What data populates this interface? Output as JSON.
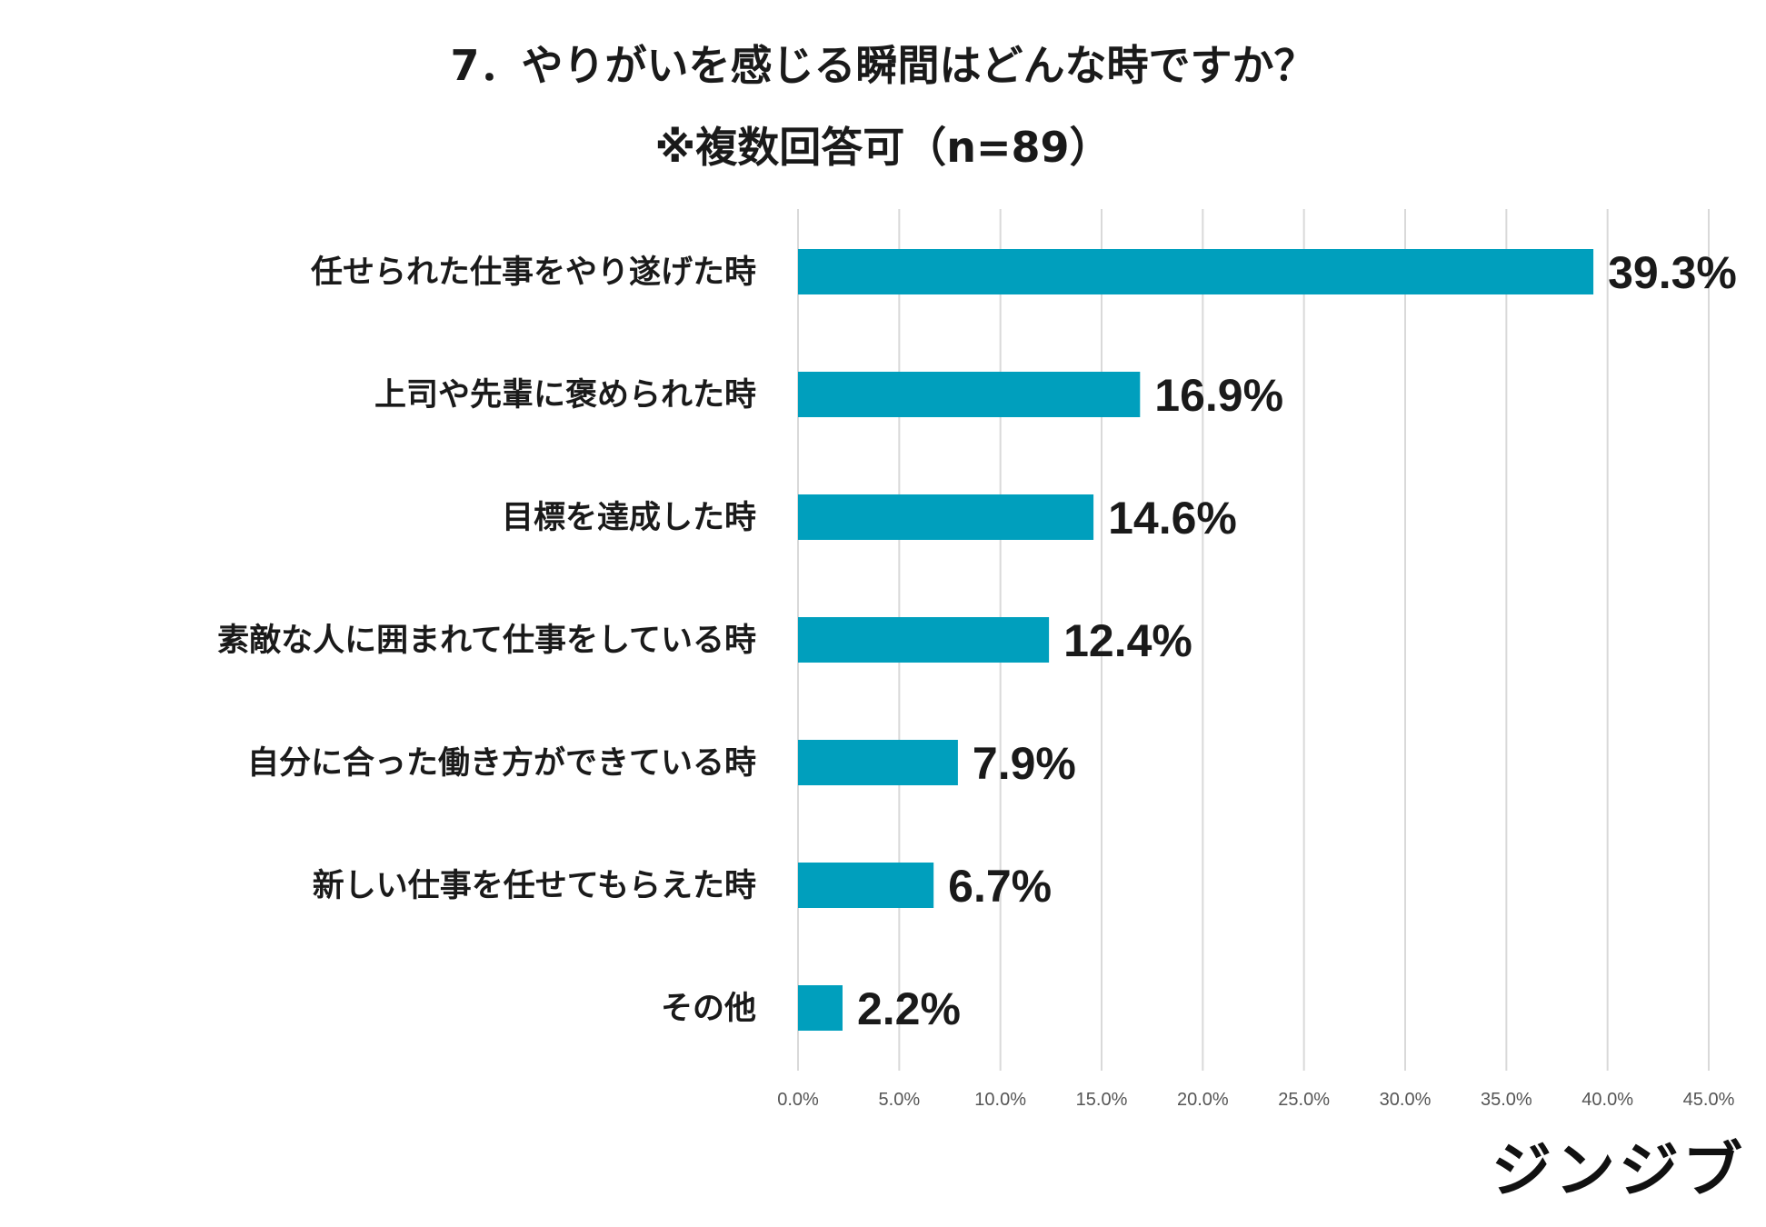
{
  "chart_data": {
    "type": "bar",
    "orientation": "horizontal",
    "title": "7．やりがいを感じる瞬間はどんな時ですか？",
    "subtitle": "※複数回答可（n=89）",
    "categories": [
      "任せられた仕事をやり遂げた時",
      "上司や先輩に褒められた時",
      "目標を達成した時",
      "素敵な人に囲まれて仕事をしている時",
      "自分に合った働き方ができている時",
      "新しい仕事を任せてもらえた時",
      "その他"
    ],
    "values": [
      39.3,
      16.9,
      14.6,
      12.4,
      7.9,
      6.7,
      2.2
    ],
    "value_labels": [
      "39.3%",
      "16.9%",
      "14.6%",
      "12.4%",
      "7.9%",
      "6.7%",
      "2.2%"
    ],
    "xlim": [
      0,
      45
    ],
    "xticks": [
      0,
      5,
      10,
      15,
      20,
      25,
      30,
      35,
      40,
      45
    ],
    "xtick_labels": [
      "0.0%",
      "5.0%",
      "10.0%",
      "15.0%",
      "20.0%",
      "25.0%",
      "30.0%",
      "35.0%",
      "40.0%",
      "45.0%"
    ],
    "grid": true,
    "bar_color": "#009fbd",
    "xlabel": "",
    "ylabel": ""
  },
  "brand": {
    "logo_text": "ジンジブ"
  }
}
